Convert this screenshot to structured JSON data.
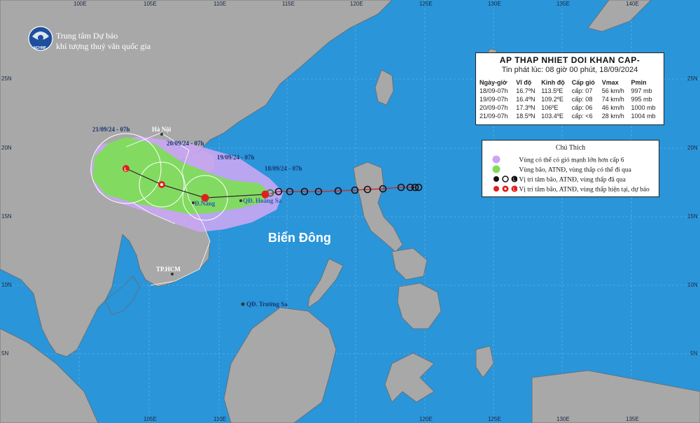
{
  "header": {
    "logo_text": "NCHMF",
    "org_line1": "Trung tâm Dự báo",
    "org_line2": "khí tượng thuỷ văn quốc gia"
  },
  "axes": {
    "lon_top": [
      "100E",
      "105E",
      "110E",
      "115E",
      "120E",
      "125E",
      "130E",
      "135E",
      "140E"
    ],
    "lon_bottom": [
      "105E",
      "110E",
      "115E",
      "120E",
      "125E",
      "130E",
      "135E",
      "140E"
    ],
    "lat_left": [
      "25N",
      "20N",
      "15N",
      "10N",
      "5N"
    ],
    "lat_right": [
      "25N",
      "20N",
      "15N",
      "10N",
      "5N"
    ]
  },
  "map_labels": {
    "sea_name": "Biển Đông",
    "ha_noi": "Hà Nội",
    "da_nang": "Đ.Nẵng",
    "hoang_sa": "QĐ. Hoàng Sa",
    "truong_sa": "QĐ. Trường Sa",
    "tp_hcm": "TP.HCM"
  },
  "track_labels": [
    "18/09/24 - 07h",
    "19/09/24 - 07h",
    "20/09/24 - 07h",
    "21/09/24 - 07h"
  ],
  "bulletin": {
    "title": "AP THAP NHIET DOI KHAN CAP-",
    "issued": "Tin phát lúc: 08 giờ 00 phút, 18/09/2024",
    "headers": [
      "Ngày-giờ",
      "Vĩ độ",
      "Kinh độ",
      "Cấp gió",
      "Vmax",
      "Pmin"
    ],
    "rows": [
      [
        "18/09-07h",
        "16.7ºN",
        "113.5ºE",
        "cấp: 07",
        "56 km/h",
        "997 mb"
      ],
      [
        "19/09-07h",
        "16.4ºN",
        "109.2ºE",
        "cấp: 08",
        "74 km/h",
        "995 mb"
      ],
      [
        "20/09-07h",
        "17.3ºN",
        "106ºE",
        "cấp: 06",
        "46 km/h",
        "1000 mb"
      ],
      [
        "21/09-07h",
        "18.5ºN",
        "103.4ºE",
        "cấp: <6",
        "28 km/h",
        "1004 mb"
      ]
    ]
  },
  "legend": {
    "title": "Chú Thích",
    "items": [
      "Vùng có thể có gió mạnh lớn hơn cấp 6",
      "Vùng bão, ATNĐ, vùng thấp có thể đi qua",
      "Vị trí tâm bão, ATNĐ, vùng thấp đã qua",
      "Vị trí tâm bão, ATNĐ, vùng thấp hiện tại, dự báo"
    ],
    "colors": {
      "strong_wind_zone": "#c9a6f2",
      "storm_zone": "#7fdc5a",
      "past_marker": "#111111",
      "forecast_marker": "#e0201c"
    }
  },
  "colors": {
    "sea": "#2a95d9",
    "land": "#a8a8a8",
    "track_line": "#c0303a"
  }
}
